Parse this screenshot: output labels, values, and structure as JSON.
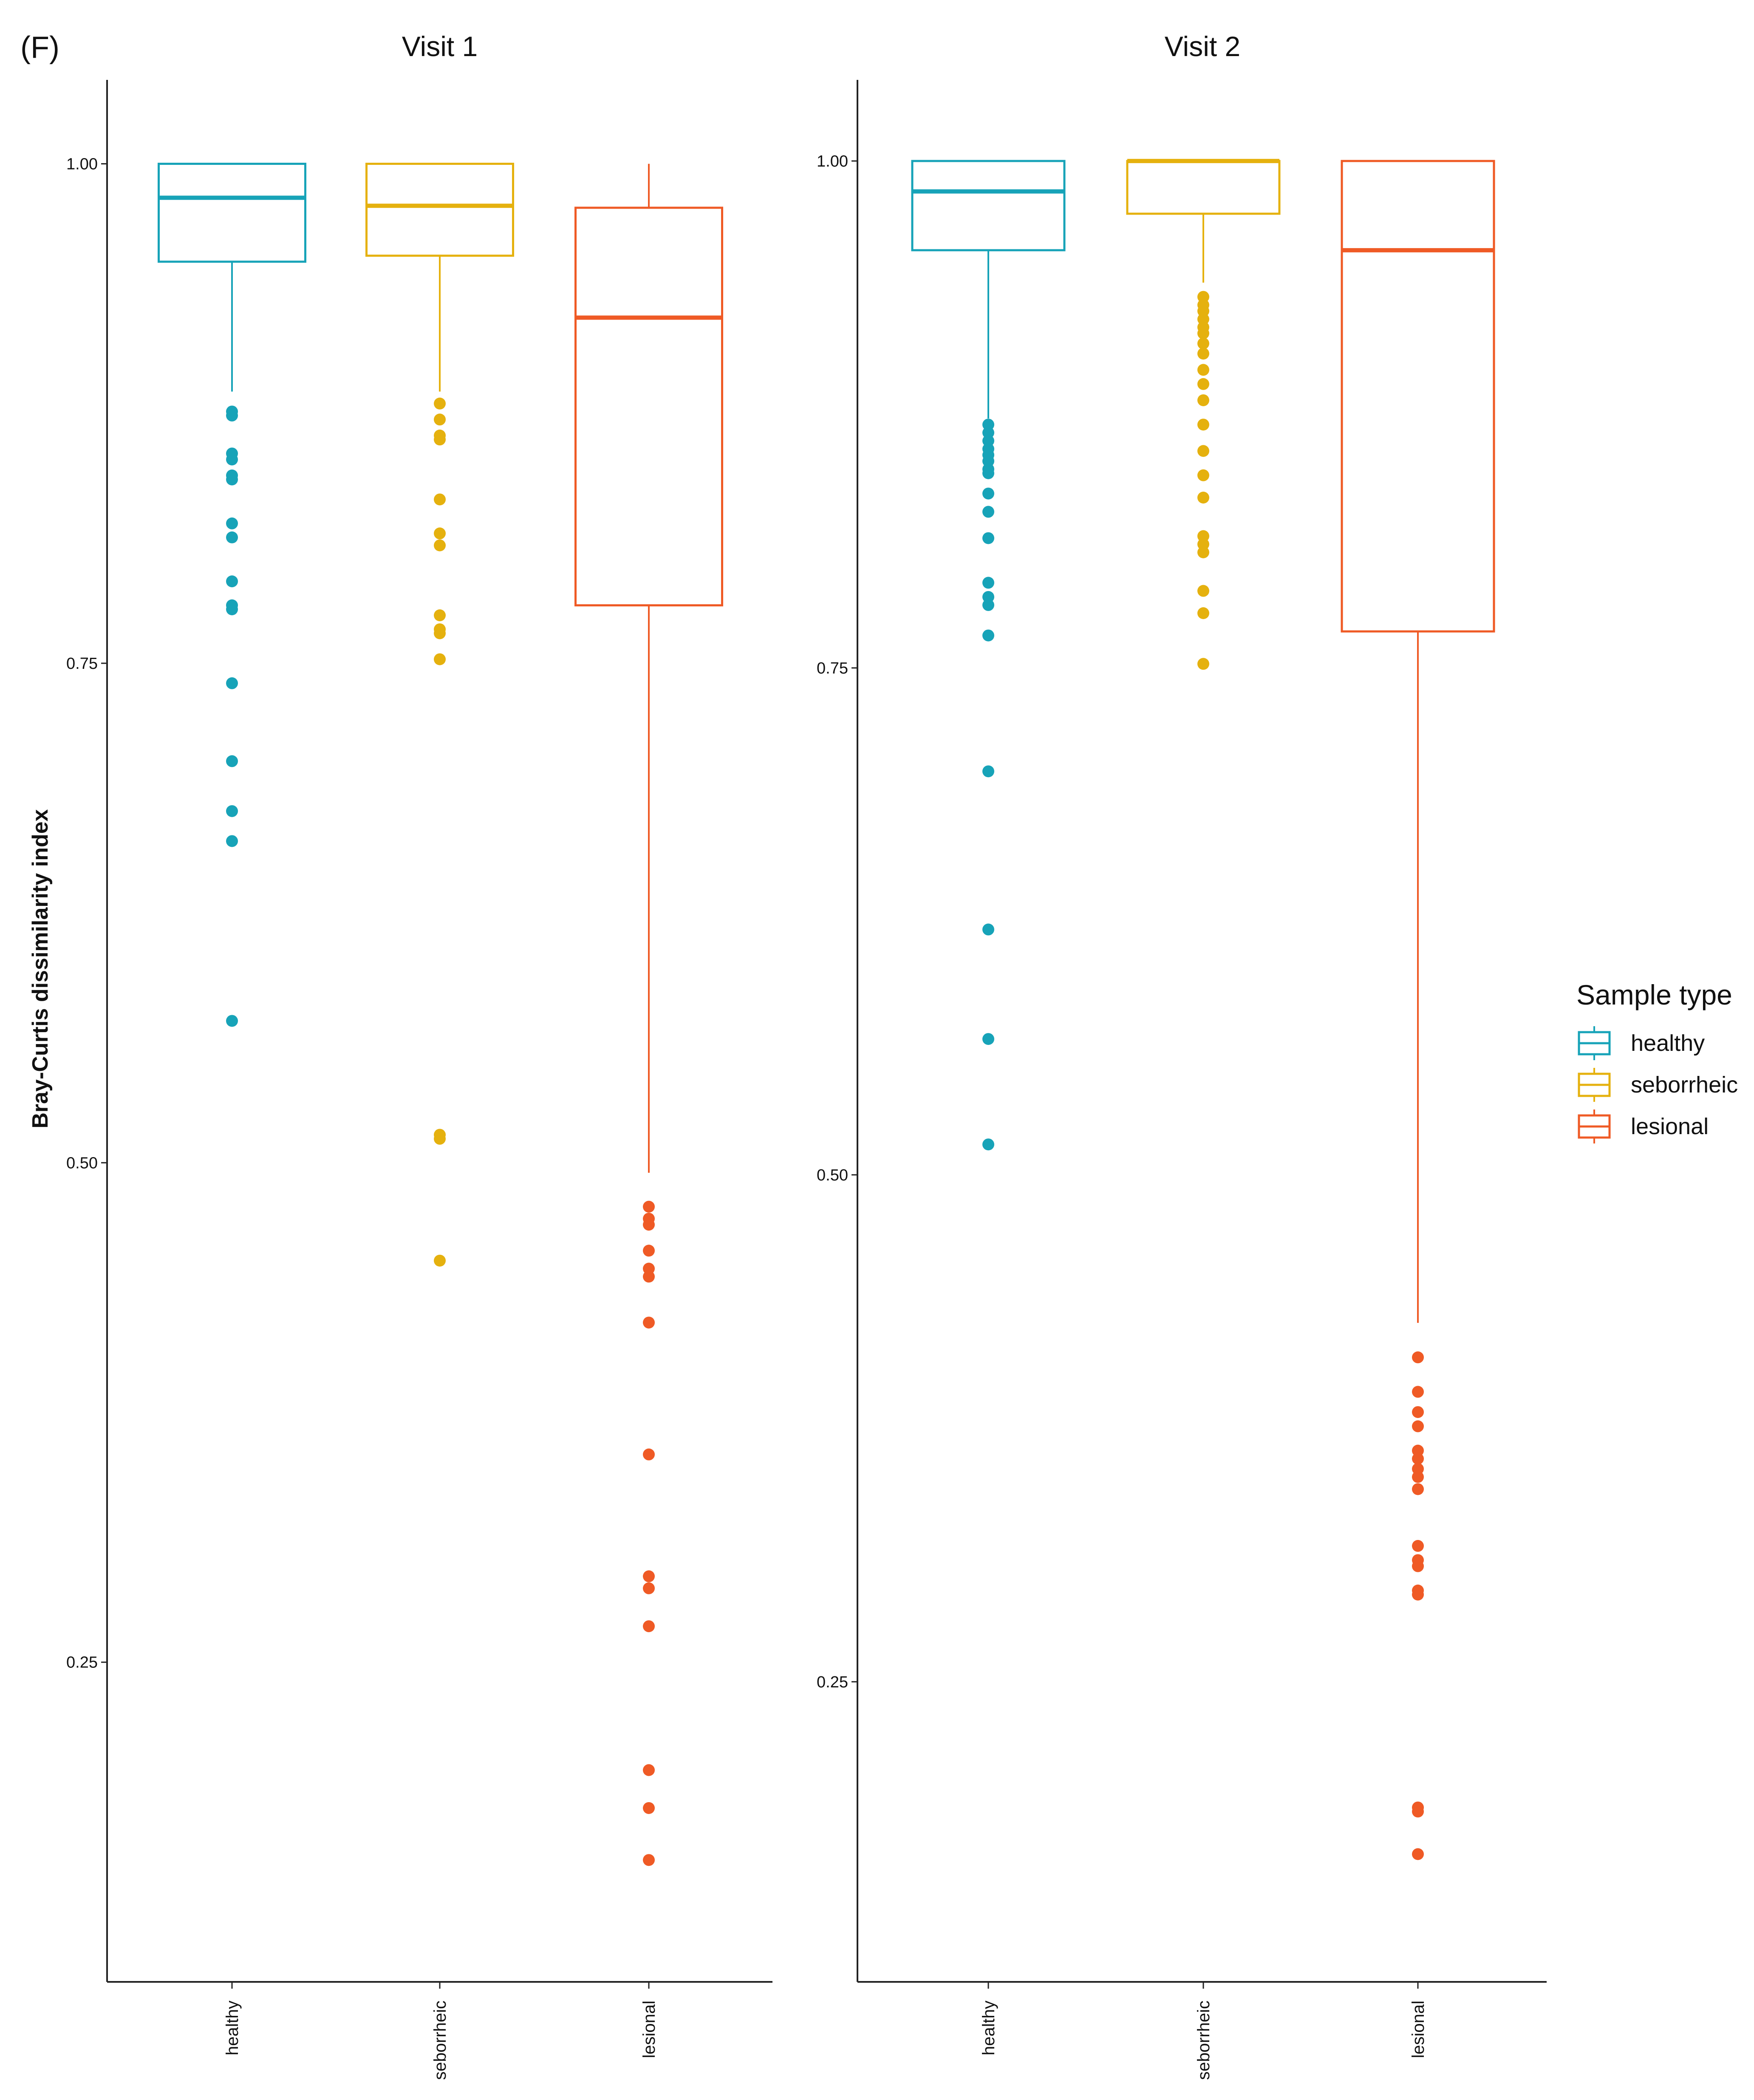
{
  "panel_label": "(F)",
  "legend": {
    "title": "Sample type",
    "items": [
      {
        "label": "healthy",
        "color": "#17a3b8"
      },
      {
        "label": "seborrheic",
        "color": "#e5b10e"
      },
      {
        "label": "lesional",
        "color": "#ef5a25"
      }
    ]
  },
  "chart_data": [
    {
      "type": "boxplot",
      "title": "Visit 1",
      "ylabel": "Bray-Curtis dissimilarity index",
      "ylim": [
        0.09,
        1.042
      ],
      "yticks": [
        0.25,
        0.5,
        0.75,
        1.0
      ],
      "ytick_labels": [
        "0.25",
        "0.50",
        "0.75",
        "1.00"
      ],
      "categories": [
        "healthy",
        "seborrheic",
        "lesional"
      ],
      "boxes": [
        {
          "name": "healthy",
          "color": "#17a3b8",
          "whisker_low": 0.886,
          "q1": 0.951,
          "median": 0.983,
          "q3": 1.0,
          "whisker_high": 1.0,
          "outliers": [
            0.876,
            0.874,
            0.855,
            0.852,
            0.844,
            0.842,
            0.82,
            0.813,
            0.791,
            0.779,
            0.777,
            0.74,
            0.701,
            0.676,
            0.661,
            0.571
          ]
        },
        {
          "name": "seborrheic",
          "color": "#e5b10e",
          "whisker_low": 0.886,
          "q1": 0.954,
          "median": 0.979,
          "q3": 1.0,
          "whisker_high": 1.0,
          "outliers": [
            0.88,
            0.872,
            0.864,
            0.862,
            0.832,
            0.815,
            0.809,
            0.774,
            0.767,
            0.765,
            0.752,
            0.514,
            0.512,
            0.451
          ]
        },
        {
          "name": "lesional",
          "color": "#ef5a25",
          "whisker_low": 0.495,
          "q1": 0.779,
          "median": 0.923,
          "q3": 0.978,
          "whisker_high": 1.0,
          "outliers": [
            0.478,
            0.472,
            0.469,
            0.456,
            0.447,
            0.443,
            0.42,
            0.354,
            0.293,
            0.287,
            0.268,
            0.196,
            0.177,
            0.151
          ]
        }
      ]
    },
    {
      "type": "boxplot",
      "title": "Visit 2",
      "ylim": [
        0.102,
        1.04
      ],
      "yticks": [
        0.25,
        0.5,
        0.75,
        1.0
      ],
      "ytick_labels": [
        "0.25",
        "0.50",
        "0.75",
        "1.00"
      ],
      "categories": [
        "healthy",
        "seborrheic",
        "lesional"
      ],
      "boxes": [
        {
          "name": "healthy",
          "color": "#17a3b8",
          "whisker_low": 0.873,
          "q1": 0.956,
          "median": 0.985,
          "q3": 1.0,
          "whisker_high": 1.0,
          "outliers": [
            0.87,
            0.866,
            0.862,
            0.858,
            0.855,
            0.852,
            0.848,
            0.846,
            0.836,
            0.827,
            0.814,
            0.792,
            0.785,
            0.781,
            0.766,
            0.699,
            0.621,
            0.567,
            0.515
          ]
        },
        {
          "name": "seborrheic",
          "color": "#e5b10e",
          "whisker_low": 0.94,
          "q1": 0.974,
          "median": 1.0,
          "q3": 1.0,
          "whisker_high": 1.0,
          "outliers": [
            0.933,
            0.929,
            0.926,
            0.922,
            0.918,
            0.915,
            0.91,
            0.905,
            0.897,
            0.89,
            0.882,
            0.87,
            0.857,
            0.845,
            0.834,
            0.815,
            0.811,
            0.807,
            0.788,
            0.777,
            0.752
          ]
        },
        {
          "name": "lesional",
          "color": "#ef5a25",
          "whisker_low": 0.427,
          "q1": 0.768,
          "median": 0.956,
          "q3": 1.0,
          "whisker_high": 1.0,
          "outliers": [
            0.41,
            0.393,
            0.383,
            0.376,
            0.364,
            0.36,
            0.355,
            0.351,
            0.345,
            0.317,
            0.31,
            0.307,
            0.295,
            0.293,
            0.188,
            0.186,
            0.165
          ]
        }
      ]
    }
  ]
}
